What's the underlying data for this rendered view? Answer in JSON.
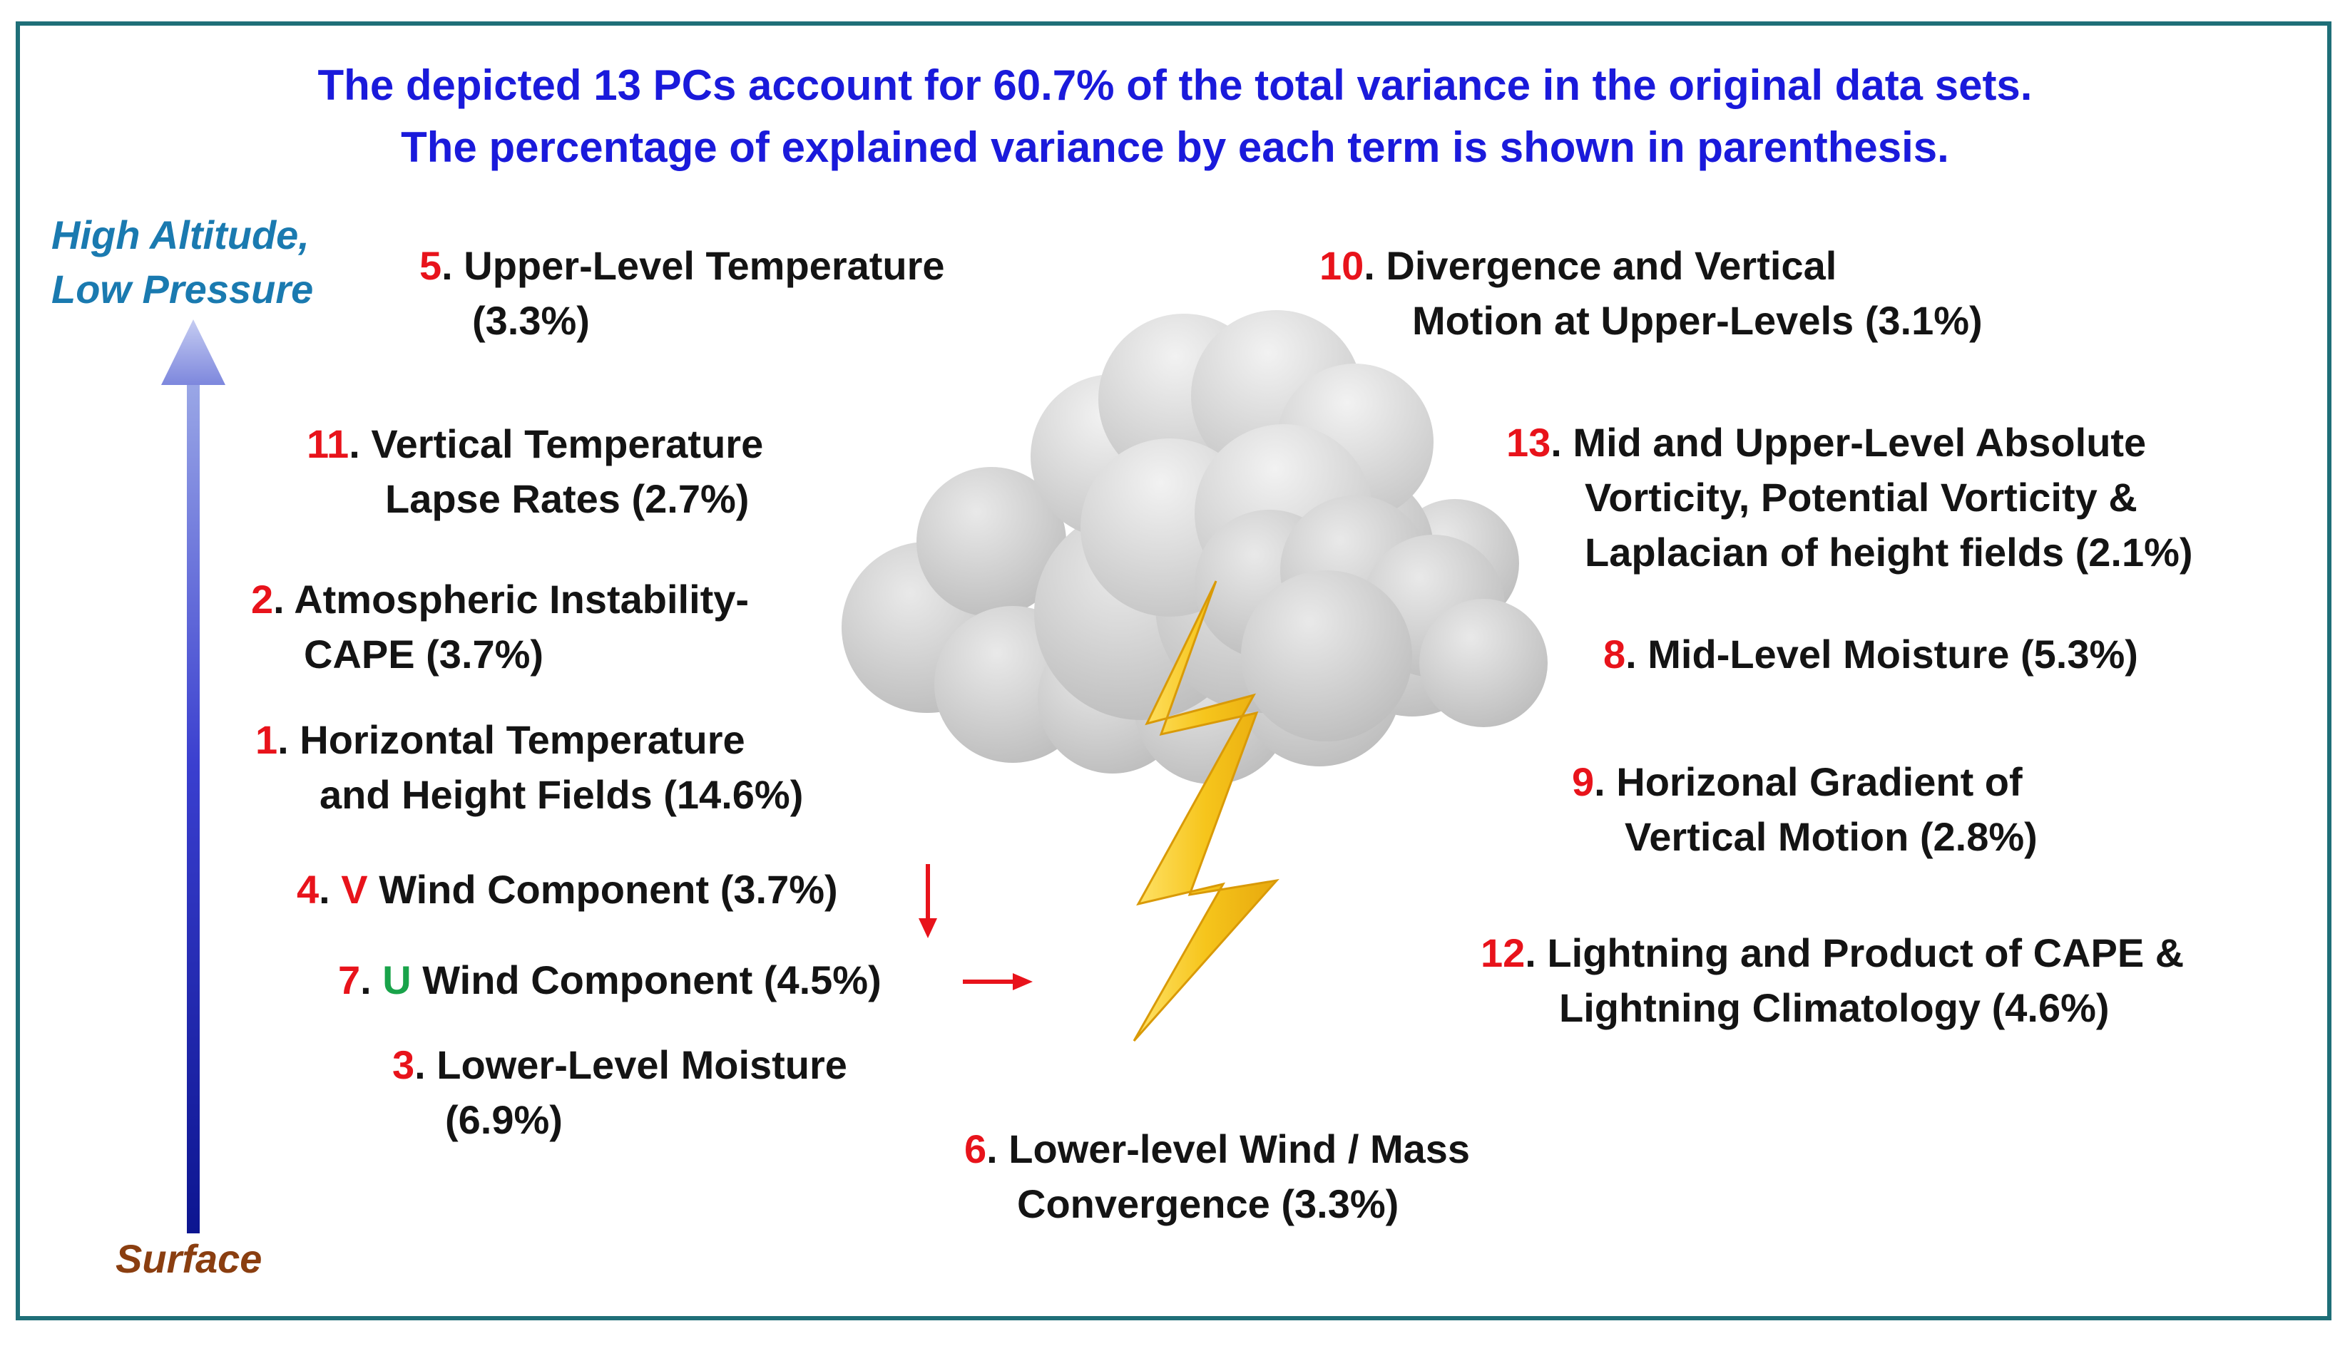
{
  "header": {
    "line1": "The depicted 13 PCs account for 60.7% of the total variance in the original data sets.",
    "line2": "The percentage of explained variance by each term is shown in parenthesis."
  },
  "axis": {
    "top_label_1": "High Altitude,",
    "top_label_2": "Low Pressure",
    "bottom_label": "Surface",
    "top_color": "#1a7ab0",
    "bottom_color": "#8a3e10"
  },
  "colors": {
    "number": "#e8131b",
    "u_letter": "#19a34a",
    "cloud": "#c9c9c9",
    "bolt": "#f4c21a"
  },
  "terms": {
    "t5": {
      "num": "5",
      "sep": ". ",
      "line1": "Upper-Level  Temperature",
      "line2": "(3.3%)"
    },
    "t10": {
      "num": "10",
      "sep": ". ",
      "line1": "Divergence and Vertical",
      "line2": "Motion at Upper-Levels (3.1%)"
    },
    "t11": {
      "num": "11",
      "sep": ". ",
      "line1": "Vertical Temperature",
      "line2": "Lapse Rates (2.7%)"
    },
    "t13": {
      "num": "13",
      "sep": ". ",
      "line1": "Mid and Upper-Level Absolute",
      "line2": "Vorticity, Potential Vorticity &",
      "line3": "Laplacian of height fields (2.1%)"
    },
    "t2": {
      "num": "2",
      "sep": ". ",
      "line1": "Atmospheric Instability-",
      "line2": "CAPE (3.7%)"
    },
    "t8": {
      "num": "8",
      "sep": ". ",
      "line1": "Mid-Level Moisture (5.3%)"
    },
    "t1": {
      "num": "1",
      "sep": ". ",
      "line1": "Horizontal  Temperature",
      "line2": "and Height Fields (14.6%)"
    },
    "t9": {
      "num": "9",
      "sep": ". ",
      "line1": "Horizonal Gradient of",
      "line2": "Vertical Motion (2.8%)"
    },
    "t4": {
      "num": "4",
      "sep": ". ",
      "letter": "V",
      "rest": " Wind Component (3.7%)"
    },
    "t7": {
      "num": "7",
      "sep": ". ",
      "letter": "U",
      "rest": " Wind Component (4.5%)"
    },
    "t12": {
      "num": "12",
      "sep": ". ",
      "line1": "Lightning and Product of CAPE &",
      "line2": "Lightning Climatology (4.6%)"
    },
    "t3": {
      "num": "3",
      "sep": ". ",
      "line1": "Lower-Level Moisture",
      "line2": "(6.9%)"
    },
    "t6": {
      "num": "6",
      "sep": ". ",
      "line1": "Lower-level Wind / Mass",
      "line2": "Convergence  (3.3%)"
    }
  }
}
